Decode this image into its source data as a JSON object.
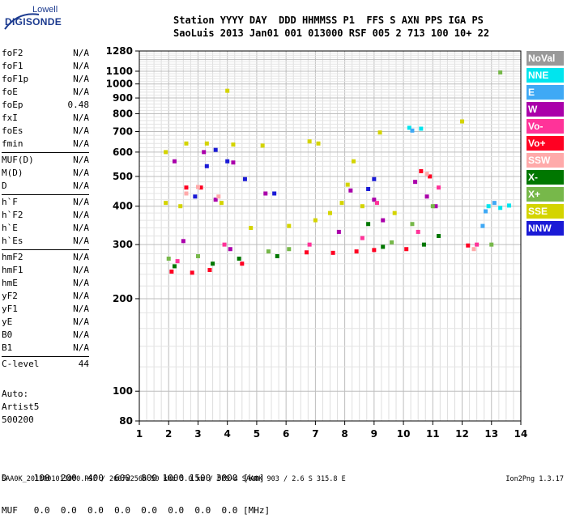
{
  "logo": {
    "line1": "Lowell",
    "line2": "DIGISONDE"
  },
  "header": {
    "row1": "Station YYYY DAY  DDD HHMMSS P1  FFS S AXN PPS IGA PS",
    "row2": "SaoLuis 2013 Jan01 001 013000 RSF 005 2 713 100 10+ 22"
  },
  "params": {
    "group1": [
      {
        "k": "foF2",
        "v": "N/A"
      },
      {
        "k": "foF1",
        "v": "N/A"
      },
      {
        "k": "foF1p",
        "v": "N/A"
      },
      {
        "k": "foE",
        "v": "N/A"
      },
      {
        "k": "foEp",
        "v": "0.48"
      },
      {
        "k": "fxI",
        "v": "N/A"
      },
      {
        "k": "foEs",
        "v": "N/A"
      },
      {
        "k": "fmin",
        "v": "N/A"
      }
    ],
    "group2": [
      {
        "k": "MUF(D)",
        "v": "N/A"
      },
      {
        "k": "M(D)",
        "v": "N/A"
      },
      {
        "k": "D",
        "v": "N/A"
      }
    ],
    "group3": [
      {
        "k": "h`F",
        "v": "N/A"
      },
      {
        "k": "h`F2",
        "v": "N/A"
      },
      {
        "k": "h`E",
        "v": "N/A"
      },
      {
        "k": "h`Es",
        "v": "N/A"
      }
    ],
    "group4": [
      {
        "k": "hmF2",
        "v": "N/A"
      },
      {
        "k": "hmF1",
        "v": "N/A"
      },
      {
        "k": "hmE",
        "v": "N/A"
      },
      {
        "k": "yF2",
        "v": "N/A"
      },
      {
        "k": "yF1",
        "v": "N/A"
      },
      {
        "k": "yE",
        "v": "N/A"
      },
      {
        "k": "B0",
        "v": "N/A"
      },
      {
        "k": "B1",
        "v": "N/A"
      }
    ],
    "group5": [
      {
        "k": "C-level",
        "v": "44"
      }
    ]
  },
  "auto": {
    "line1": "Auto:",
    "line2": "Artist5",
    "line3": "500200"
  },
  "legend": [
    {
      "label": "NoVal",
      "color": "#999999"
    },
    {
      "label": "NNE",
      "color": "#00e5ee"
    },
    {
      "label": "E",
      "color": "#3fa9f5"
    },
    {
      "label": "W",
      "color": "#aa00aa"
    },
    {
      "label": "Vo-",
      "color": "#ff3399"
    },
    {
      "label": "Vo+",
      "color": "#ff0022"
    },
    {
      "label": "SSW",
      "color": "#ffaaaa"
    },
    {
      "label": "X-",
      "color": "#007700"
    },
    {
      "label": "X+",
      "color": "#77b84a"
    },
    {
      "label": "SSE",
      "color": "#d4d400"
    },
    {
      "label": "NNW",
      "color": "#1a1ad6"
    }
  ],
  "dtable": {
    "row1": "D     100  200  400  600  800 1000 1500 3000 [km]",
    "row2": "MUF   0.0  0.0  0.0  0.0  0.0  0.0  0.0  0.0 [MHz]"
  },
  "footer": "SAA0K_2013001013000.RSF / 260fx256h 50 kHz 5.0 km / DPS-4 SAA0K 903 / 2.6 S 315.8 E",
  "version": "Ion2Png 1.3.17",
  "chart_data": {
    "type": "scatter",
    "title": "",
    "xlabel": "",
    "ylabel": "",
    "xlim": [
      1,
      14
    ],
    "ylim": [
      80,
      1280
    ],
    "yscale": "log",
    "grid": true,
    "x_ticks": [
      1,
      2,
      3,
      4,
      5,
      6,
      7,
      8,
      9,
      10,
      11,
      12,
      13,
      14
    ],
    "y_ticks": [
      80,
      100,
      200,
      300,
      400,
      500,
      600,
      700,
      800,
      900,
      1000,
      1100,
      1280
    ],
    "series": [
      {
        "name": "NNE",
        "points": [
          [
            10.2,
            720
          ],
          [
            10.6,
            715
          ],
          [
            12.9,
            400
          ],
          [
            13.3,
            395
          ],
          [
            13.6,
            402
          ]
        ]
      },
      {
        "name": "E",
        "points": [
          [
            10.3,
            705
          ],
          [
            12.8,
            385
          ],
          [
            13.1,
            410
          ],
          [
            12.7,
            345
          ]
        ]
      },
      {
        "name": "W",
        "points": [
          [
            2.5,
            308
          ],
          [
            3.6,
            420
          ],
          [
            4.1,
            290
          ],
          [
            5.3,
            440
          ],
          [
            8.2,
            450
          ],
          [
            9.0,
            420
          ],
          [
            10.4,
            480
          ],
          [
            10.8,
            430
          ],
          [
            11.1,
            400
          ],
          [
            3.2,
            600
          ],
          [
            2.2,
            560
          ],
          [
            4.2,
            555
          ],
          [
            7.8,
            330
          ],
          [
            9.3,
            360
          ]
        ]
      },
      {
        "name": "Vo-",
        "points": [
          [
            2.3,
            265
          ],
          [
            3.9,
            300
          ],
          [
            6.8,
            300
          ],
          [
            8.6,
            315
          ],
          [
            10.5,
            330
          ],
          [
            11.2,
            460
          ],
          [
            12.5,
            300
          ],
          [
            9.1,
            410
          ]
        ]
      },
      {
        "name": "Vo+",
        "points": [
          [
            2.1,
            245
          ],
          [
            2.8,
            243
          ],
          [
            3.4,
            248
          ],
          [
            4.5,
            260
          ],
          [
            6.7,
            283
          ],
          [
            7.6,
            282
          ],
          [
            8.4,
            285
          ],
          [
            9.0,
            288
          ],
          [
            10.1,
            290
          ],
          [
            12.2,
            298
          ],
          [
            2.6,
            460
          ],
          [
            3.1,
            460
          ],
          [
            10.6,
            520
          ],
          [
            10.9,
            500
          ]
        ]
      },
      {
        "name": "SSW",
        "points": [
          [
            2.6,
            440
          ],
          [
            3.0,
            462
          ],
          [
            3.7,
            430
          ],
          [
            10.8,
            510
          ],
          [
            12.4,
            290
          ]
        ]
      },
      {
        "name": "X-",
        "points": [
          [
            2.2,
            255
          ],
          [
            3.5,
            260
          ],
          [
            4.4,
            270
          ],
          [
            5.7,
            275
          ],
          [
            9.3,
            295
          ],
          [
            10.7,
            300
          ],
          [
            11.2,
            320
          ],
          [
            8.8,
            350
          ]
        ]
      },
      {
        "name": "X+",
        "points": [
          [
            2.0,
            270
          ],
          [
            3.0,
            275
          ],
          [
            5.4,
            285
          ],
          [
            6.1,
            290
          ],
          [
            9.6,
            305
          ],
          [
            10.3,
            350
          ],
          [
            11.0,
            400
          ],
          [
            13.0,
            300
          ],
          [
            13.3,
            1090
          ]
        ]
      },
      {
        "name": "SSE",
        "points": [
          [
            1.9,
            410
          ],
          [
            2.6,
            640
          ],
          [
            3.3,
            640
          ],
          [
            4.2,
            635
          ],
          [
            4.8,
            340
          ],
          [
            5.2,
            630
          ],
          [
            6.1,
            345
          ],
          [
            6.8,
            650
          ],
          [
            7.1,
            640
          ],
          [
            7.5,
            380
          ],
          [
            8.1,
            470
          ],
          [
            8.6,
            400
          ],
          [
            9.2,
            695
          ],
          [
            9.7,
            380
          ],
          [
            2.4,
            400
          ],
          [
            3.8,
            410
          ],
          [
            7.0,
            360
          ],
          [
            7.9,
            410
          ],
          [
            12.0,
            755
          ],
          [
            4.0,
            950
          ],
          [
            1.9,
            600
          ],
          [
            8.3,
            560
          ]
        ]
      },
      {
        "name": "NNW",
        "points": [
          [
            2.9,
            430
          ],
          [
            3.3,
            540
          ],
          [
            4.0,
            560
          ],
          [
            4.6,
            490
          ],
          [
            5.6,
            440
          ],
          [
            8.8,
            455
          ],
          [
            3.6,
            610
          ],
          [
            9.0,
            490
          ]
        ]
      }
    ]
  }
}
